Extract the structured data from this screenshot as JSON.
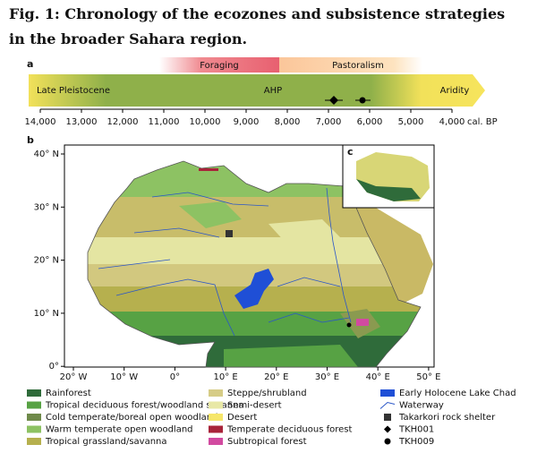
{
  "title": "Fig. 1: Chronology of the ecozones and subsistence strategies in the broader Sahara region.",
  "panel_a": {
    "label": "a",
    "foraging": "Foraging",
    "pastoralism": "Pastoralism",
    "periods": [
      "Late Pleistocene",
      "AHP",
      "Aridity"
    ],
    "ticks": [
      "14,000",
      "13,000",
      "12,000",
      "11,000",
      "10,000",
      "9,000",
      "8,000",
      "7,000",
      "6,000",
      "5,000",
      "4,000"
    ],
    "unit": "cal. BP"
  },
  "panel_b": {
    "label": "b",
    "inset_label": "c",
    "lat_labels": [
      "40° N",
      "30° N",
      "20° N",
      "10° N",
      "0°"
    ],
    "lon_labels": [
      "20° W",
      "10° W",
      "0°",
      "10° E",
      "20° E",
      "30° E",
      "40° E",
      "50° E"
    ]
  },
  "legend": [
    {
      "label": "Rainforest",
      "color": "#2f6b3a",
      "symbol": "rect"
    },
    {
      "label": "Tropical deciduous forest/woodland savanna",
      "color": "#57a244",
      "symbol": "rect"
    },
    {
      "label": "Cold temperate/boreal open woodland",
      "color": "#6f8a4a",
      "symbol": "rect"
    },
    {
      "label": "Warm temperate open woodland",
      "color": "#8dc263",
      "symbol": "rect"
    },
    {
      "label": "Tropical grassland/savanna",
      "color": "#b6b04e",
      "symbol": "rect"
    },
    {
      "label": "Steppe/shrubland",
      "color": "#d6cc86",
      "symbol": "rect"
    },
    {
      "label": "Semi-desert",
      "color": "#e8e8a6",
      "symbol": "rect"
    },
    {
      "label": "Desert",
      "color": "#f6e66a",
      "symbol": "rect"
    },
    {
      "label": "Temperate deciduous forest",
      "color": "#a8243a",
      "symbol": "rect"
    },
    {
      "label": "Subtropical forest",
      "color": "#d24aa0",
      "symbol": "rect"
    },
    {
      "label": "Early Holocene Lake Chad",
      "color": "#1f4fd6",
      "symbol": "rect"
    },
    {
      "label": "Waterway",
      "color": "#2a56c8",
      "symbol": "line"
    },
    {
      "label": "Takarkori rock shelter",
      "color": "#333333",
      "symbol": "square"
    },
    {
      "label": "TKH001",
      "color": "#000000",
      "symbol": "diamond"
    },
    {
      "label": "TKH009",
      "color": "#000000",
      "symbol": "circle"
    }
  ]
}
